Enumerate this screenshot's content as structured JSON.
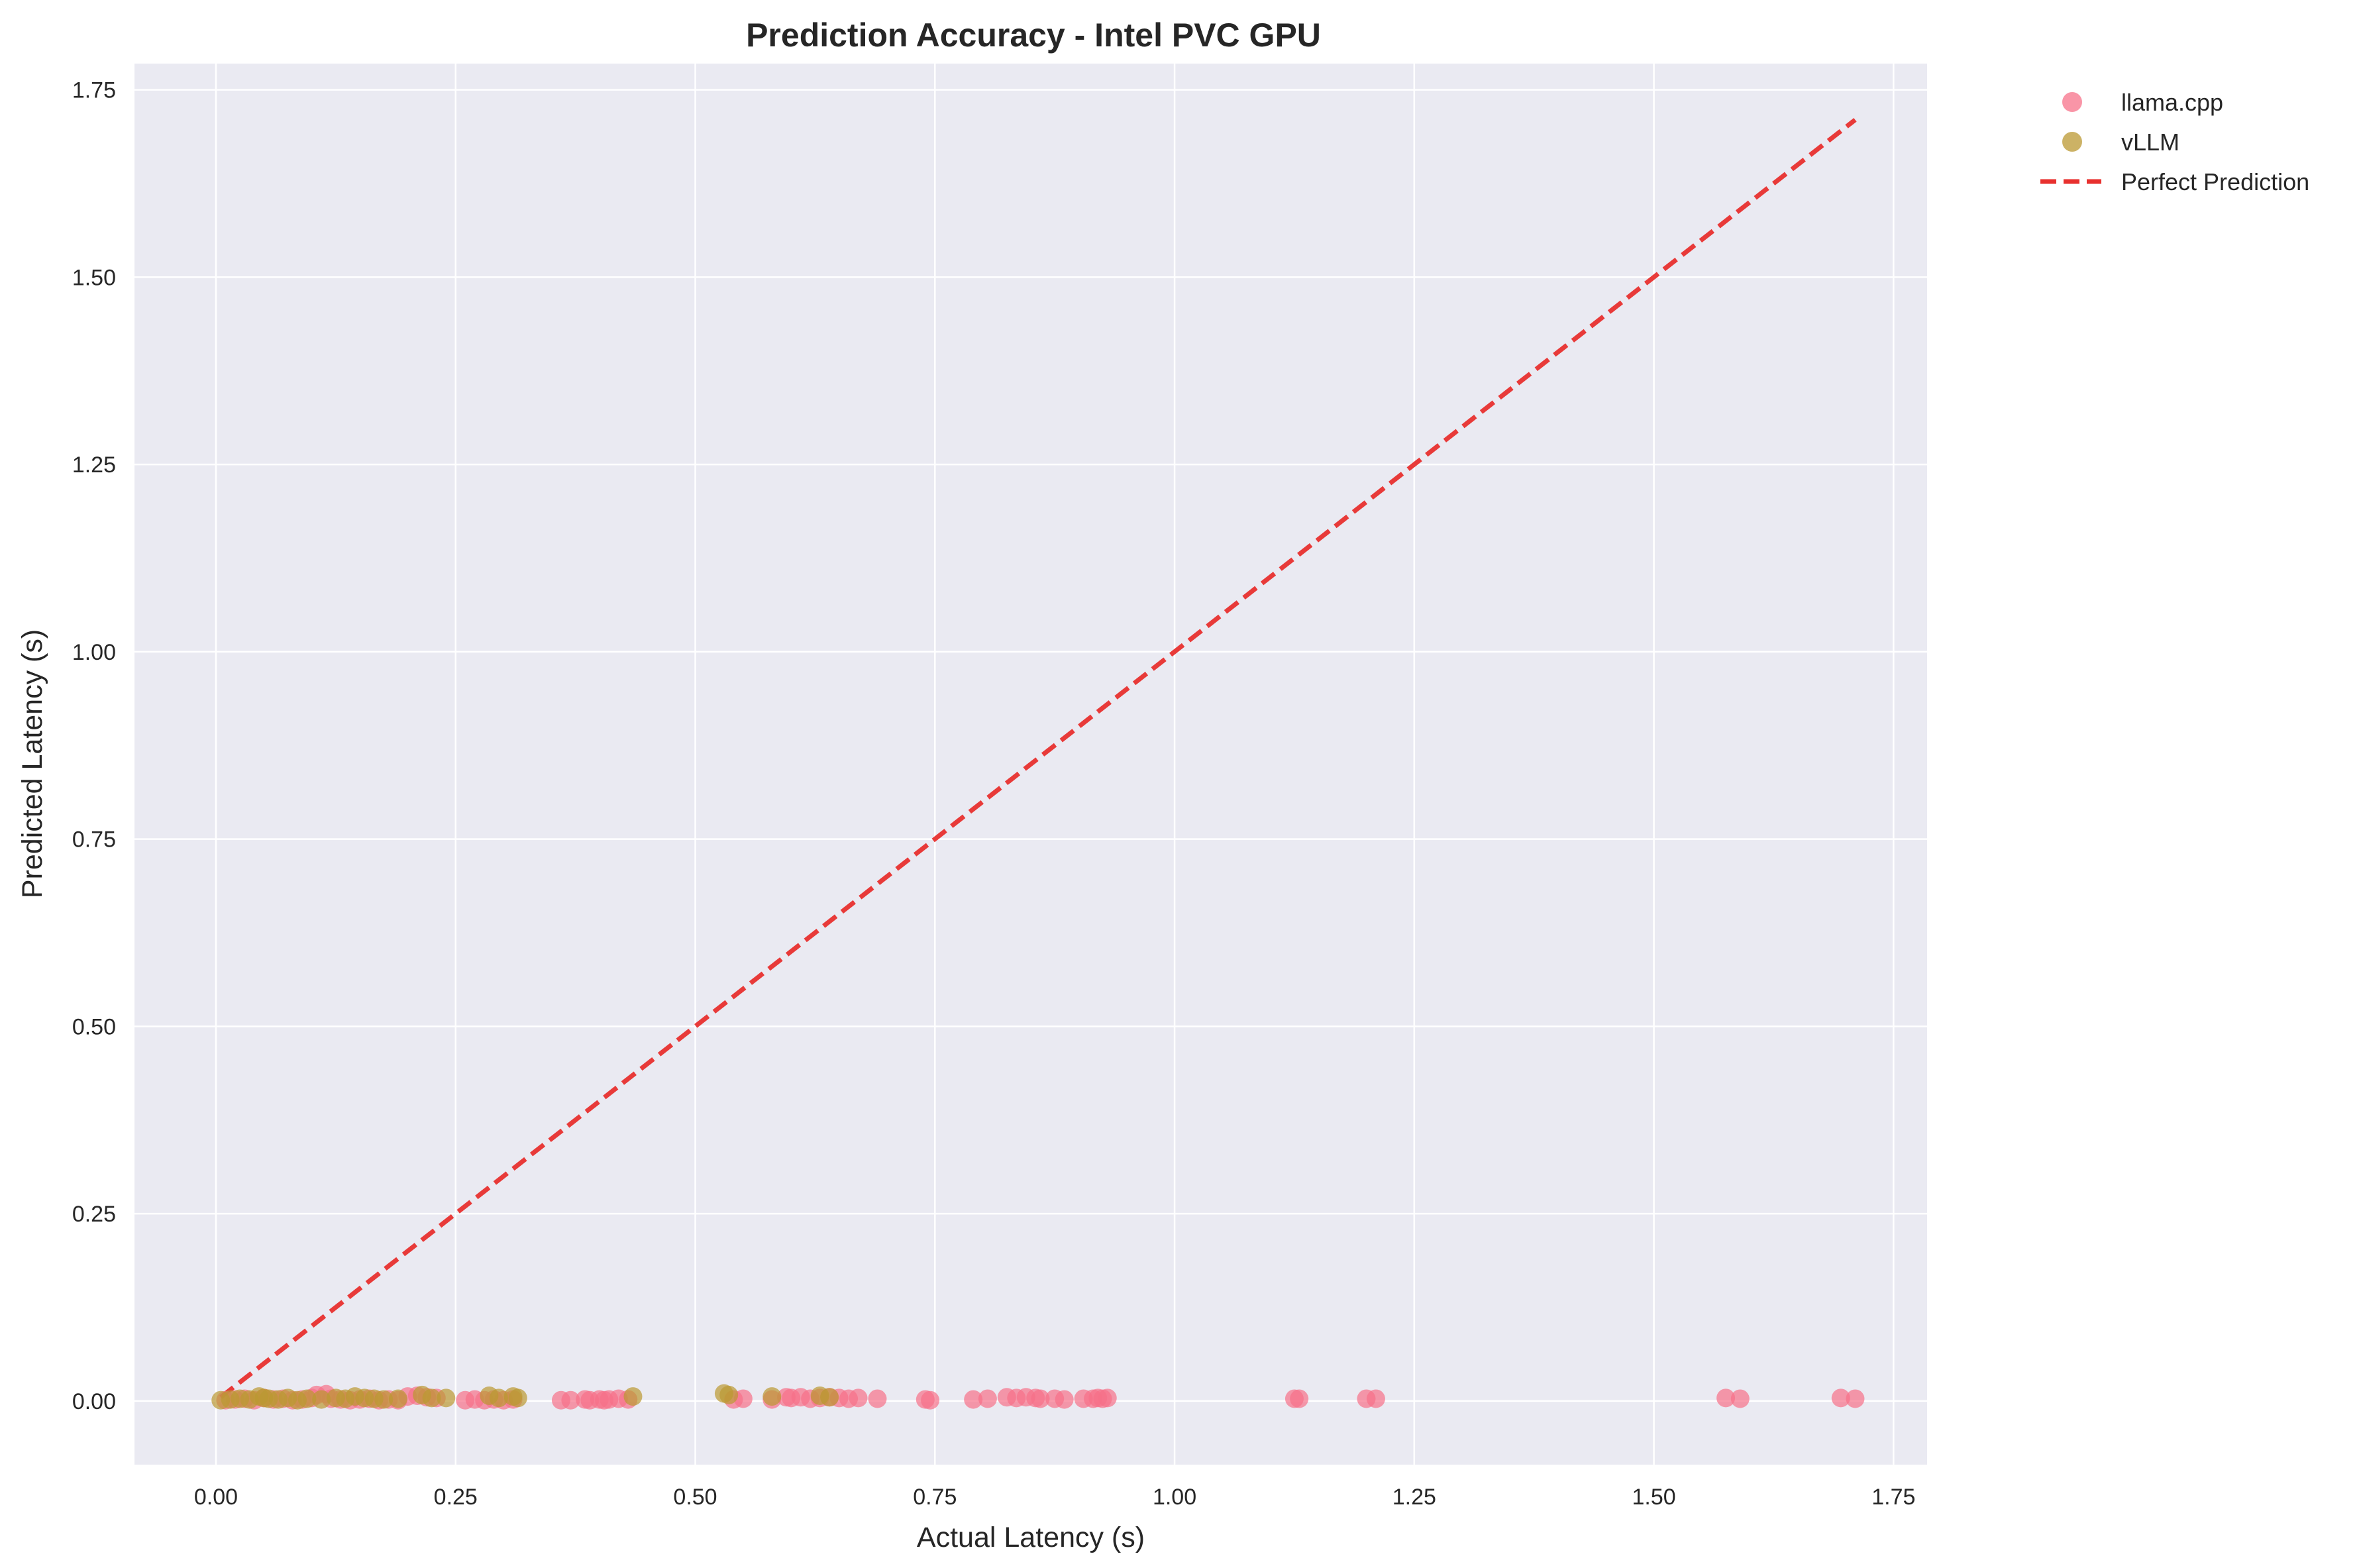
{
  "chart_data": {
    "type": "scatter",
    "title": "Prediction Accuracy - Intel PVC GPU",
    "xlabel": "Actual Latency (s)",
    "ylabel": "Predicted Latency (s)",
    "xlim": [
      -0.085,
      1.785
    ],
    "ylim": [
      -0.085,
      1.785
    ],
    "xticks": [
      "0.00",
      "0.25",
      "0.50",
      "0.75",
      "1.00",
      "1.25",
      "1.50",
      "1.75"
    ],
    "yticks": [
      "0.00",
      "0.25",
      "0.50",
      "0.75",
      "1.00",
      "1.25",
      "1.50",
      "1.75"
    ],
    "grid": true,
    "legend_position": "outside-top-right",
    "series": [
      {
        "name": "llama.cpp",
        "color": "#f77189",
        "points": [
          [
            0.01,
            0.001
          ],
          [
            0.02,
            0.002
          ],
          [
            0.03,
            0.003
          ],
          [
            0.04,
            0.001
          ],
          [
            0.05,
            0.004
          ],
          [
            0.06,
            0.002
          ],
          [
            0.07,
            0.003
          ],
          [
            0.08,
            0.001
          ],
          [
            0.09,
            0.002
          ],
          [
            0.1,
            0.004
          ],
          [
            0.105,
            0.008
          ],
          [
            0.115,
            0.009
          ],
          [
            0.12,
            0.003
          ],
          [
            0.13,
            0.002
          ],
          [
            0.14,
            0.001
          ],
          [
            0.15,
            0.002
          ],
          [
            0.16,
            0.003
          ],
          [
            0.17,
            0.001
          ],
          [
            0.18,
            0.002
          ],
          [
            0.19,
            0.001
          ],
          [
            0.2,
            0.006
          ],
          [
            0.21,
            0.007
          ],
          [
            0.22,
            0.005
          ],
          [
            0.23,
            0.004
          ],
          [
            0.26,
            0.001
          ],
          [
            0.27,
            0.002
          ],
          [
            0.28,
            0.001
          ],
          [
            0.29,
            0.002
          ],
          [
            0.3,
            0.001
          ],
          [
            0.31,
            0.002
          ],
          [
            0.36,
            0.001
          ],
          [
            0.37,
            0.001
          ],
          [
            0.385,
            0.002
          ],
          [
            0.39,
            0.001
          ],
          [
            0.4,
            0.002
          ],
          [
            0.405,
            0.001
          ],
          [
            0.41,
            0.002
          ],
          [
            0.42,
            0.003
          ],
          [
            0.43,
            0.002
          ],
          [
            0.54,
            0.002
          ],
          [
            0.55,
            0.003
          ],
          [
            0.58,
            0.002
          ],
          [
            0.595,
            0.005
          ],
          [
            0.6,
            0.004
          ],
          [
            0.61,
            0.005
          ],
          [
            0.62,
            0.003
          ],
          [
            0.63,
            0.004
          ],
          [
            0.64,
            0.005
          ],
          [
            0.65,
            0.004
          ],
          [
            0.66,
            0.003
          ],
          [
            0.67,
            0.004
          ],
          [
            0.69,
            0.003
          ],
          [
            0.74,
            0.002
          ],
          [
            0.745,
            0.001
          ],
          [
            0.79,
            0.002
          ],
          [
            0.805,
            0.003
          ],
          [
            0.825,
            0.005
          ],
          [
            0.835,
            0.004
          ],
          [
            0.845,
            0.005
          ],
          [
            0.855,
            0.004
          ],
          [
            0.86,
            0.003
          ],
          [
            0.875,
            0.003
          ],
          [
            0.885,
            0.002
          ],
          [
            0.905,
            0.003
          ],
          [
            0.915,
            0.003
          ],
          [
            0.92,
            0.004
          ],
          [
            0.925,
            0.003
          ],
          [
            0.93,
            0.004
          ],
          [
            1.125,
            0.003
          ],
          [
            1.13,
            0.003
          ],
          [
            1.2,
            0.003
          ],
          [
            1.21,
            0.003
          ],
          [
            1.575,
            0.004
          ],
          [
            1.59,
            0.003
          ],
          [
            1.695,
            0.004
          ],
          [
            1.71,
            0.003
          ]
        ]
      },
      {
        "name": "vLLM",
        "color": "#bb9832",
        "points": [
          [
            0.005,
            0.001
          ],
          [
            0.015,
            0.002
          ],
          [
            0.025,
            0.003
          ],
          [
            0.035,
            0.002
          ],
          [
            0.045,
            0.006
          ],
          [
            0.05,
            0.004
          ],
          [
            0.055,
            0.003
          ],
          [
            0.065,
            0.002
          ],
          [
            0.075,
            0.004
          ],
          [
            0.085,
            0.001
          ],
          [
            0.095,
            0.003
          ],
          [
            0.11,
            0.002
          ],
          [
            0.125,
            0.004
          ],
          [
            0.135,
            0.003
          ],
          [
            0.145,
            0.006
          ],
          [
            0.155,
            0.004
          ],
          [
            0.165,
            0.003
          ],
          [
            0.175,
            0.002
          ],
          [
            0.19,
            0.003
          ],
          [
            0.215,
            0.008
          ],
          [
            0.225,
            0.004
          ],
          [
            0.24,
            0.004
          ],
          [
            0.285,
            0.007
          ],
          [
            0.295,
            0.004
          ],
          [
            0.31,
            0.006
          ],
          [
            0.315,
            0.004
          ],
          [
            0.435,
            0.006
          ],
          [
            0.53,
            0.01
          ],
          [
            0.535,
            0.008
          ],
          [
            0.58,
            0.006
          ],
          [
            0.63,
            0.007
          ],
          [
            0.64,
            0.005
          ]
        ]
      },
      {
        "name": "Perfect Prediction",
        "color": "#e8302e",
        "style": "dashed-line",
        "points": [
          [
            0.005,
            0.005
          ],
          [
            1.71,
            1.71
          ]
        ]
      }
    ]
  }
}
